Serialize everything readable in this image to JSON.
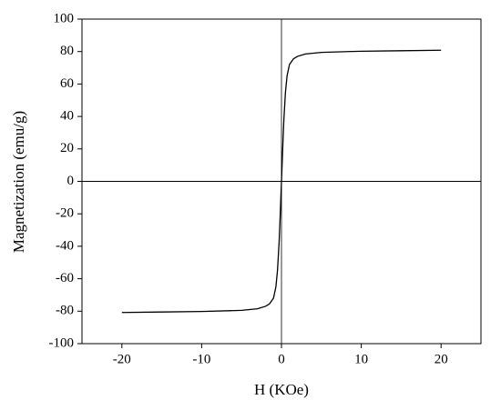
{
  "chart_data": {
    "type": "line",
    "x_label": "H (KOe)",
    "y_label": "Magnetization (emu/g)",
    "x": [
      -20,
      -15,
      -10,
      -5,
      -3,
      -2,
      -1.5,
      -1,
      -0.7,
      -0.5,
      -0.3,
      -0.2,
      -0.1,
      0,
      0.1,
      0.2,
      0.3,
      0.5,
      0.7,
      1,
      1.5,
      2,
      3,
      5,
      10,
      15,
      20
    ],
    "series": [
      {
        "color": "#000000",
        "values": [
          -80.8,
          -80.5,
          -80.2,
          -79.5,
          -78.5,
          -77,
          -75.5,
          -72,
          -65,
          -55,
          -38,
          -26,
          -13,
          0,
          13,
          26,
          38,
          55,
          65,
          72,
          75.5,
          77,
          78.5,
          79.5,
          80.2,
          80.5,
          80.8
        ]
      }
    ],
    "xlim": [
      -25,
      25
    ],
    "xticks": [
      -20,
      -10,
      0,
      10,
      20
    ],
    "ylim": [
      -100,
      100
    ],
    "yticks": [
      -100,
      -80,
      -60,
      -40,
      -20,
      0,
      20,
      40,
      60,
      80,
      100
    ],
    "zero_lines": true
  }
}
